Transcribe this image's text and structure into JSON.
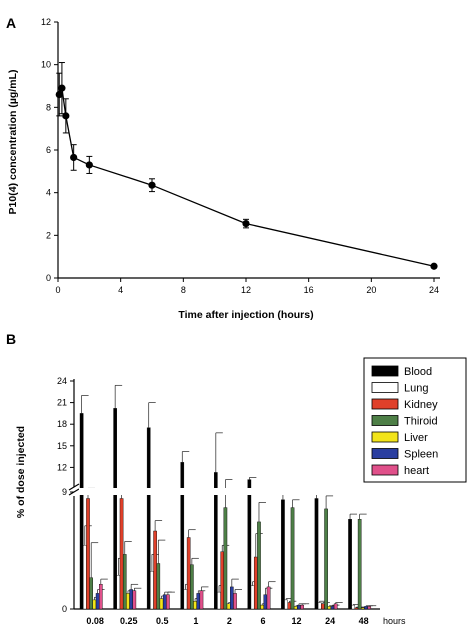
{
  "chart_data": [
    {
      "type": "line",
      "panel_label": "A",
      "xlabel": "Time after injection (hours)",
      "ylabel": "P10(4) concentration (µg/mL)",
      "xlim": [
        0,
        24
      ],
      "ylim": [
        0,
        12
      ],
      "x_ticks": [
        0,
        4,
        8,
        12,
        16,
        20,
        24
      ],
      "y_ticks": [
        0,
        2,
        4,
        6,
        8,
        10,
        12
      ],
      "grid": false,
      "series": [
        {
          "x": [
            0.08,
            0.25,
            0.5,
            1,
            2,
            6,
            12,
            24
          ],
          "y": [
            8.6,
            8.9,
            7.6,
            5.65,
            5.3,
            4.35,
            2.55,
            0.55
          ],
          "err": [
            1.0,
            1.2,
            0.8,
            0.6,
            0.4,
            0.3,
            0.2,
            0.05
          ]
        }
      ]
    },
    {
      "type": "bar",
      "panel_label": "B",
      "ylabel": "% of dose injected",
      "x_unit_label": "hours",
      "categories": [
        "0.08",
        "0.25",
        "0.5",
        "1",
        "2",
        "6",
        "12",
        "24",
        "48"
      ],
      "y_ticks_upper": [
        9,
        12,
        15,
        18,
        21,
        24
      ],
      "y_ticks_lower": [
        0
      ],
      "axis_break": true,
      "legend_position": "top-right",
      "series": [
        {
          "name": "Blood",
          "color": "#000000",
          "values": [
            19.5,
            20.2,
            17.5,
            12.7,
            11.3,
            10.3,
            8.4,
            8.5,
            6.9
          ],
          "err": [
            2.5,
            3.2,
            3.5,
            1.5,
            5.5,
            0.3,
            0.5,
            0.4,
            0.4
          ]
        },
        {
          "name": "Lung",
          "color": "#ffffff",
          "values": [
            4.9,
            2.6,
            2.9,
            1.5,
            1.3,
            1.8,
            0.7,
            0.5,
            0.3
          ],
          "err": [
            1.5,
            1.3,
            1.3,
            0.4,
            0.5,
            0.3,
            0.1,
            0.1,
            0.05
          ]
        },
        {
          "name": "Kidney",
          "color": "#e0402a",
          "values": [
            8.5,
            8.5,
            6.0,
            5.5,
            4.4,
            4.0,
            0.5,
            0.4,
            0.1
          ],
          "err": [
            0.6,
            0.3,
            0.8,
            0.6,
            0.5,
            1.8,
            0.1,
            0.1,
            0.05
          ]
        },
        {
          "name": "Thiroid",
          "color": "#4e7f47",
          "values": [
            2.4,
            4.2,
            3.5,
            3.4,
            7.8,
            6.7,
            7.8,
            7.7,
            6.9
          ],
          "err": [
            2.7,
            1.0,
            1.8,
            0.5,
            2.5,
            1.5,
            0.6,
            1.0,
            0.4
          ]
        },
        {
          "name": "Liver",
          "color": "#f2e41a",
          "values": [
            0.7,
            1.2,
            0.8,
            0.6,
            0.4,
            0.3,
            0.2,
            0.2,
            0.1
          ],
          "err": [
            0.2,
            0.2,
            0.2,
            0.2,
            0.1,
            0.1,
            0.05,
            0.05,
            0.05
          ]
        },
        {
          "name": "Spleen",
          "color": "#2a3ea0",
          "values": [
            1.2,
            1.5,
            1.1,
            1.2,
            1.7,
            1.1,
            0.3,
            0.2,
            0.2
          ],
          "err": [
            0.3,
            0.4,
            0.2,
            0.2,
            0.6,
            0.5,
            0.1,
            0.1,
            0.05
          ]
        },
        {
          "name": "heart",
          "color": "#e0508a",
          "values": [
            1.9,
            1.4,
            1.1,
            1.4,
            1.2,
            1.7,
            0.3,
            0.4,
            0.2
          ],
          "err": [
            0.4,
            0.2,
            0.2,
            0.3,
            0.3,
            0.4,
            0.1,
            0.1,
            0.05
          ]
        }
      ]
    }
  ]
}
